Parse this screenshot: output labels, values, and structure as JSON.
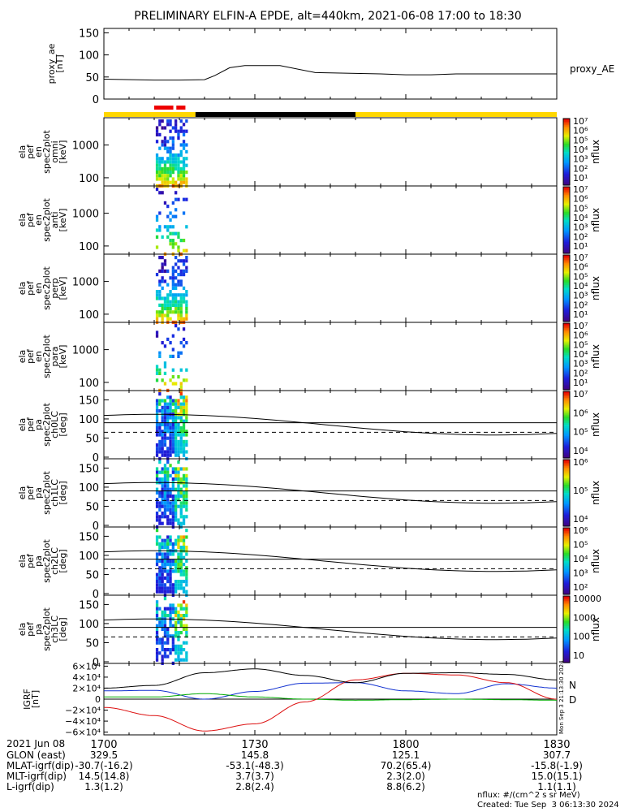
{
  "title": "PRELIMINARY ELFIN-A EPDE, alt=440km, 2021-06-08 17:00 to 18:30",
  "colors": {
    "orbit_yellow": "#ffd700",
    "orbit_black": "#000000",
    "science_red": "#ee0000",
    "igrf_n": "#1030d0",
    "igrf_e": "#00aa00",
    "igrf_d": "#dd1010"
  },
  "chart_data": [
    {
      "type": "line",
      "ylabel": "proxy_ae\n[nT]",
      "yticks": [
        "150",
        "100",
        "50",
        "0"
      ],
      "ylim": [
        0,
        160
      ],
      "legend": "proxy_AE",
      "x": [
        0,
        10,
        15,
        20,
        22,
        25,
        28,
        35,
        42,
        55,
        60,
        65,
        70,
        80,
        90
      ],
      "values": [
        45,
        43,
        43,
        44,
        53,
        71,
        76,
        76,
        60,
        57,
        55,
        55,
        57,
        57,
        57
      ]
    },
    {
      "type": "bar",
      "label": "orbit bar",
      "segments": [
        {
          "x0": 0,
          "x1": 18.2,
          "color": "yellow"
        },
        {
          "x0": 18.2,
          "x1": 50,
          "color": "black"
        },
        {
          "x0": 50,
          "x1": 90,
          "color": "yellow"
        }
      ],
      "science": [
        [
          10,
          13.8
        ],
        [
          14.4,
          16.2
        ]
      ]
    },
    {
      "type": "heatmap",
      "ylabel": "ela\npef\nen\nspec2plot\nomni\n[keV]",
      "yticks": [
        "1000",
        "100"
      ],
      "cbar_label": "nflux",
      "cbar_ticks": [
        "10⁷",
        "10⁶",
        "10⁵",
        "10⁴",
        "10³",
        "10²",
        "10¹"
      ]
    },
    {
      "type": "heatmap",
      "ylabel": "ela\npef\nen\nspec2plot\nanti\n[keV]",
      "yticks": [
        "1000",
        "100"
      ],
      "cbar_label": "nflux",
      "cbar_ticks": [
        "10⁷",
        "10⁶",
        "10⁵",
        "10⁴",
        "10³",
        "10²",
        "10¹"
      ]
    },
    {
      "type": "heatmap",
      "ylabel": "ela\npef\nen\nspec2plot\nperp\n[keV]",
      "yticks": [
        "1000",
        "100"
      ],
      "cbar_label": "nflux",
      "cbar_ticks": [
        "10⁷",
        "10⁶",
        "10⁵",
        "10⁴",
        "10³",
        "10²",
        "10¹"
      ]
    },
    {
      "type": "heatmap",
      "ylabel": "ela\npef\nen\nspec2plot\npara\n[keV]",
      "yticks": [
        "1000",
        "100"
      ],
      "cbar_label": "nflux",
      "cbar_ticks": [
        "10⁷",
        "10⁶",
        "10⁵",
        "10⁴",
        "10³",
        "10²",
        "10¹"
      ]
    },
    {
      "type": "heatmap",
      "ylabel": "ela\npef\npa\nspec2plot\nch0LC\n[deg]",
      "yticks": [
        "150",
        "100",
        "50",
        "0"
      ],
      "cbar_label": "nflux",
      "cbar_ticks": [
        "10⁷",
        "10⁶",
        "10⁵",
        "10⁴"
      ]
    },
    {
      "type": "heatmap",
      "ylabel": "ela\npef\npa\nspec2plot\nch1LC\n[deg]",
      "yticks": [
        "150",
        "100",
        "50",
        "0"
      ],
      "cbar_label": "nflux",
      "cbar_ticks": [
        "10⁶",
        "10⁵",
        "10⁴"
      ]
    },
    {
      "type": "heatmap",
      "ylabel": "ela\npef\npa\nspec2plot\nch2LC\n[deg]",
      "yticks": [
        "150",
        "100",
        "50",
        "0"
      ],
      "cbar_label": "nflux",
      "cbar_ticks": [
        "10⁶",
        "10⁵",
        "10⁴",
        "10³",
        "10²"
      ]
    },
    {
      "type": "heatmap",
      "ylabel": "ela\npef\npa\nspec2plot\nch3LC\n[deg]",
      "yticks": [
        "150",
        "100",
        "50",
        "0"
      ],
      "cbar_label": "nflux",
      "cbar_ticks": [
        "10000",
        "1000",
        "100",
        "10"
      ]
    },
    {
      "type": "line",
      "ylabel": "IGRF\n[nT]",
      "yticks": [
        "6×10⁴",
        "4×10⁴",
        "2×10⁴",
        "0",
        "−2×10⁴",
        "−4×10⁴",
        "−6×10⁴"
      ],
      "ylim": [
        -65000,
        65000
      ],
      "x": [
        0,
        10,
        20,
        30,
        40,
        50,
        60,
        70,
        80,
        90
      ],
      "series": [
        {
          "name": "N",
          "values": [
            15000,
            16000,
            0,
            14000,
            29000,
            30000,
            15000,
            10000,
            28000,
            20000
          ]
        },
        {
          "name": "E",
          "values": [
            4000,
            4000,
            10000,
            4000,
            0,
            -2000,
            -1000,
            0,
            -1000,
            -2000
          ]
        },
        {
          "name": "D",
          "values": [
            -15000,
            -30000,
            -58000,
            -45000,
            -5000,
            35000,
            47000,
            44000,
            30000,
            0
          ]
        },
        {
          "name": "",
          "values": [
            20000,
            25000,
            48000,
            55000,
            43000,
            30000,
            47000,
            48000,
            45000,
            35000
          ]
        }
      ],
      "side_labels": [
        "N",
        "D"
      ],
      "side_stamp": "Mon Sep  3 21:13:30 2024"
    }
  ],
  "x_axis": {
    "ticks": [
      "1700",
      "1730",
      "1800",
      "1830"
    ],
    "date": "2021 Jun 08",
    "rows": [
      {
        "label": "GLON (east)",
        "values": [
          "329.5",
          "145.8",
          "125.1",
          "307.7"
        ]
      },
      {
        "label": "MLAT-igrf(dip)",
        "values": [
          "-30.7(-16.2)",
          "-53.1(-48.3)",
          "70.2(65.4)",
          "-15.8(-1.9)"
        ]
      },
      {
        "label": "MLT-igrf(dip)",
        "values": [
          "14.5(14.8)",
          "3.7(3.7)",
          "2.3(2.0)",
          "15.0(15.1)"
        ]
      },
      {
        "label": "L-igrf(dip)",
        "values": [
          "1.3(1.2)",
          "2.8(2.4)",
          "8.8(6.2)",
          "1.1(1.1)"
        ]
      }
    ]
  },
  "footer": {
    "units": "nflux: #/(cm^2 s sr MeV)",
    "created": "Created: Tue Sep  3 06:13:30 2024"
  }
}
